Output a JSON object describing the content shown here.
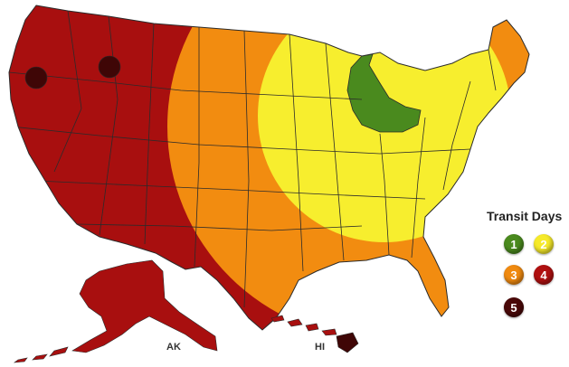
{
  "legend": {
    "title": "Transit Days",
    "items": [
      {
        "label": "1",
        "color": "#4a8a1e"
      },
      {
        "label": "2",
        "color": "#f6ea2a"
      },
      {
        "label": "3",
        "color": "#f08a10"
      },
      {
        "label": "4",
        "color": "#b01010"
      },
      {
        "label": "5",
        "color": "#4a0808"
      }
    ]
  },
  "regions": {
    "day1_color": "#4a8a1e",
    "day2_color": "#f7ee2e",
    "day3_color": "#f28c10",
    "day4_color": "#a80f0f",
    "day5_color": "#3f0606",
    "border_color": "#2b2b2b"
  },
  "labels": {
    "alaska": "AK",
    "hawaii": "HI"
  }
}
